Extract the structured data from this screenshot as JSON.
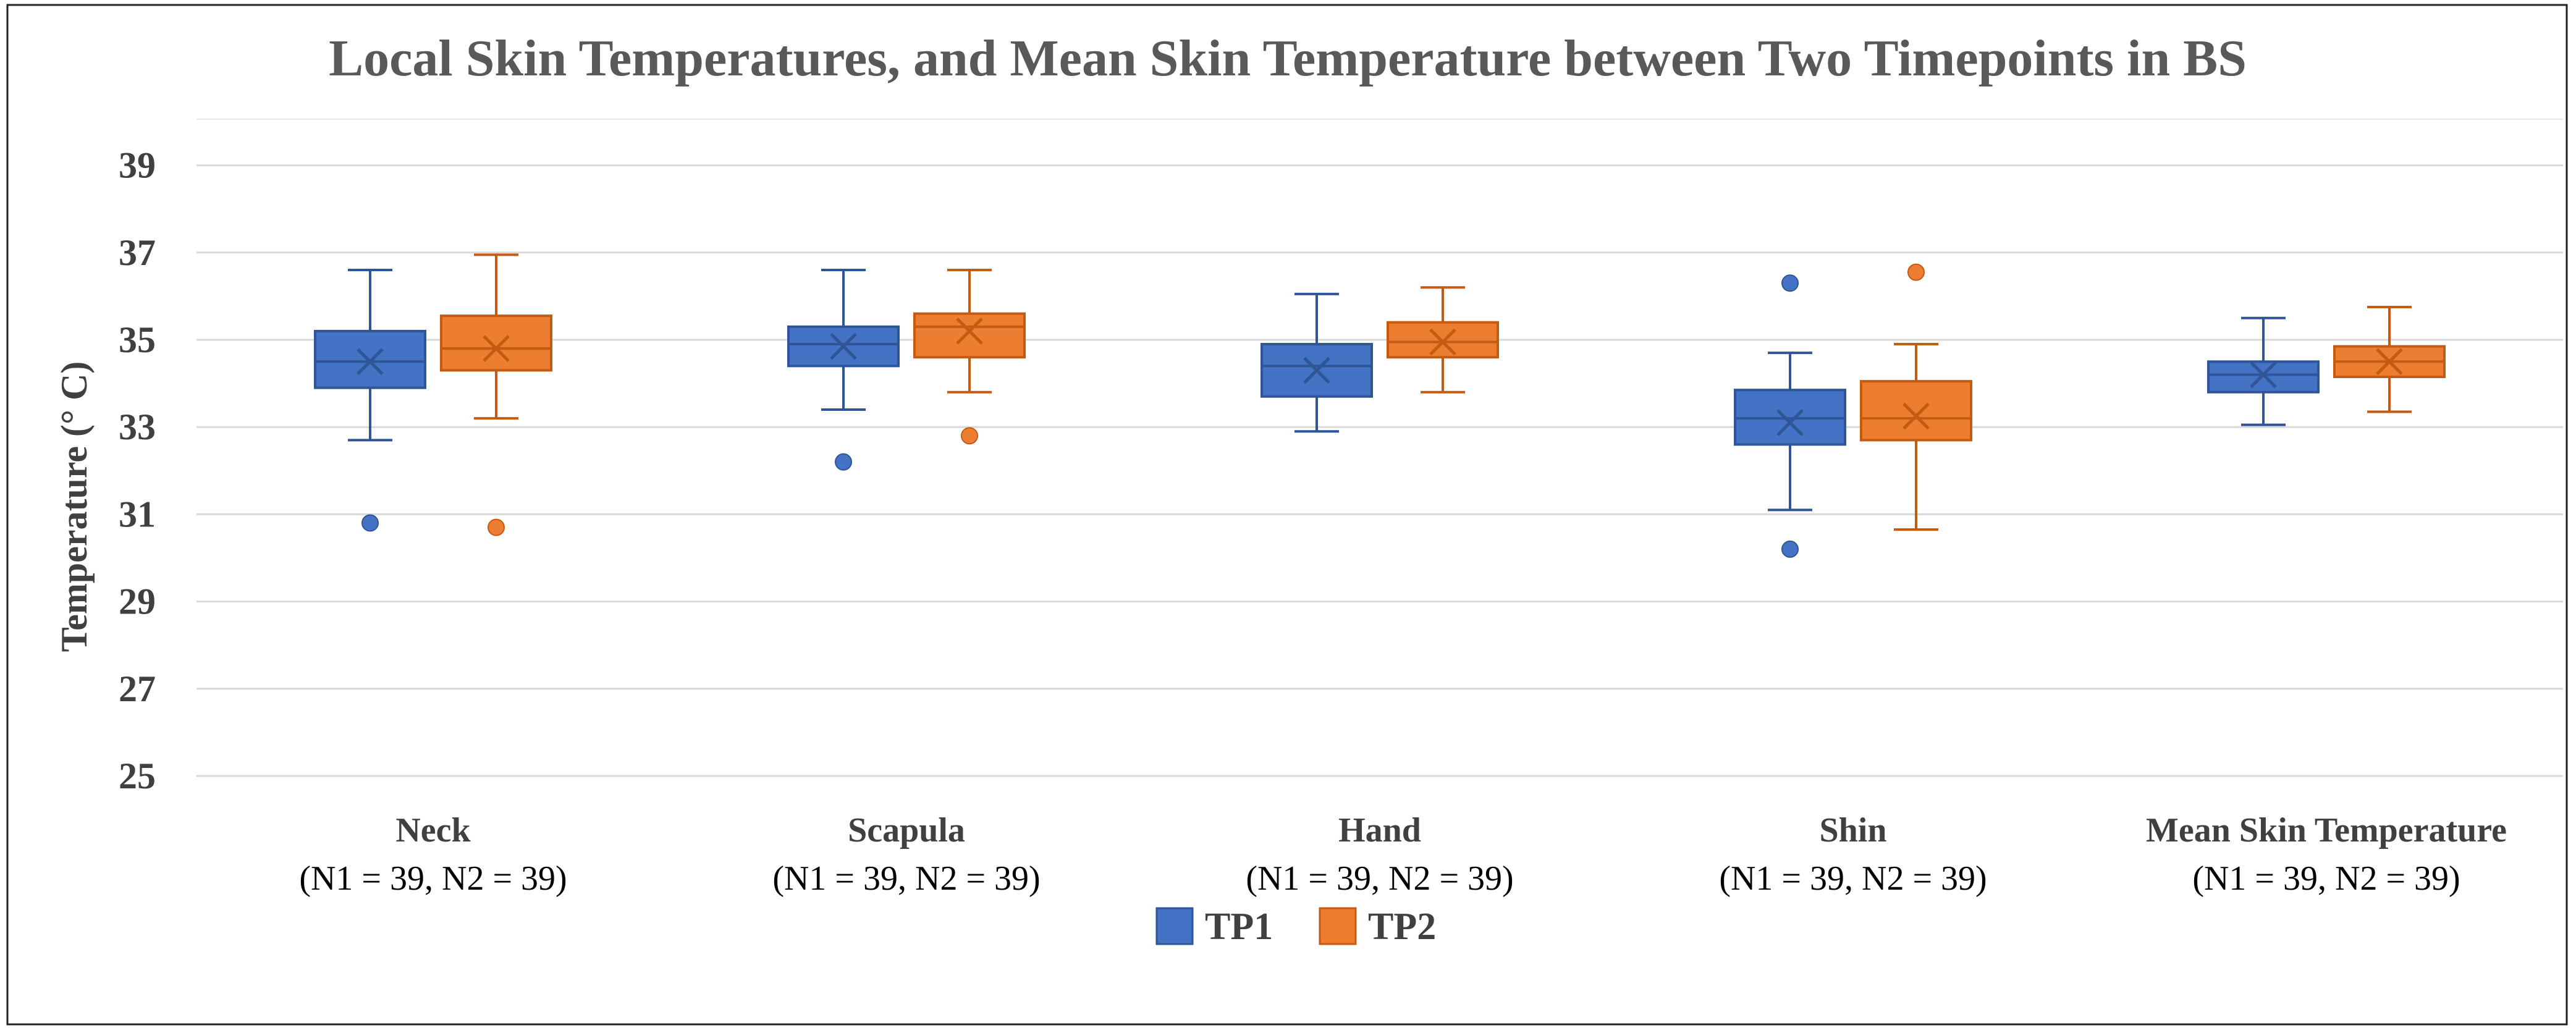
{
  "chart_data": {
    "type": "box",
    "title": "Local Skin Temperatures, and Mean Skin Temperature between Two Timepoints in BS",
    "ylabel": "Temperature (° C)",
    "xlabel": "",
    "ylim": [
      25,
      40
    ],
    "yticks": [
      25,
      27,
      29,
      31,
      33,
      35,
      37,
      39
    ],
    "grid": true,
    "legend_position": "bottom-center",
    "categories": [
      {
        "name": "Neck",
        "n_label": "(N1 = 39, N2 = 39)"
      },
      {
        "name": "Scapula",
        "n_label": "(N1 = 39, N2 = 39)"
      },
      {
        "name": "Hand",
        "n_label": "(N1 = 39, N2 = 39)"
      },
      {
        "name": "Shin",
        "n_label": "(N1 = 39, N2 = 39)"
      },
      {
        "name": "Mean Skin Temperature",
        "n_label": "(N1 = 39, N2 = 39)"
      }
    ],
    "series": [
      {
        "name": "TP1",
        "color": "#4472C4",
        "edge": "#2F5597",
        "boxes": [
          {
            "whisker_low": 32.7,
            "q1": 33.9,
            "median": 34.5,
            "mean": 34.5,
            "q3": 35.2,
            "whisker_high": 36.6,
            "outliers": [
              30.8
            ]
          },
          {
            "whisker_low": 33.4,
            "q1": 34.4,
            "median": 34.9,
            "mean": 34.85,
            "q3": 35.3,
            "whisker_high": 36.6,
            "outliers": [
              32.2
            ]
          },
          {
            "whisker_low": 32.9,
            "q1": 33.7,
            "median": 34.4,
            "mean": 34.3,
            "q3": 34.9,
            "whisker_high": 36.05,
            "outliers": []
          },
          {
            "whisker_low": 31.1,
            "q1": 32.6,
            "median": 33.2,
            "mean": 33.1,
            "q3": 33.85,
            "whisker_high": 34.7,
            "outliers": [
              36.3,
              30.2
            ]
          },
          {
            "whisker_low": 33.05,
            "q1": 33.8,
            "median": 34.2,
            "mean": 34.2,
            "q3": 34.5,
            "whisker_high": 35.5,
            "outliers": []
          }
        ]
      },
      {
        "name": "TP2",
        "color": "#ED7D31",
        "edge": "#C55A11",
        "boxes": [
          {
            "whisker_low": 33.2,
            "q1": 34.3,
            "median": 34.8,
            "mean": 34.8,
            "q3": 35.55,
            "whisker_high": 36.95,
            "outliers": [
              30.7
            ]
          },
          {
            "whisker_low": 33.8,
            "q1": 34.6,
            "median": 35.3,
            "mean": 35.2,
            "q3": 35.6,
            "whisker_high": 36.6,
            "outliers": [
              32.8
            ]
          },
          {
            "whisker_low": 33.8,
            "q1": 34.6,
            "median": 34.95,
            "mean": 34.95,
            "q3": 35.4,
            "whisker_high": 36.2,
            "outliers": []
          },
          {
            "whisker_low": 30.65,
            "q1": 32.7,
            "median": 33.2,
            "mean": 33.25,
            "q3": 34.05,
            "whisker_high": 34.9,
            "outliers": [
              36.55
            ]
          },
          {
            "whisker_low": 33.35,
            "q1": 34.15,
            "median": 34.5,
            "mean": 34.5,
            "q3": 34.85,
            "whisker_high": 35.75,
            "outliers": []
          }
        ]
      }
    ]
  }
}
